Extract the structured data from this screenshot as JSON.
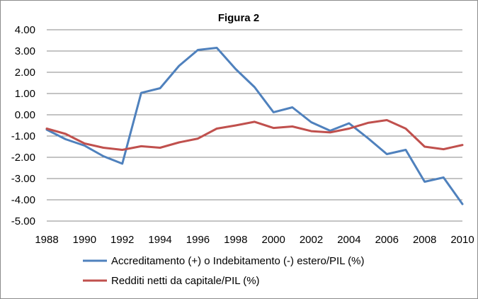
{
  "chart_data": {
    "type": "line",
    "title": "Figura 2",
    "xlabel": "",
    "ylabel": "",
    "x": [
      1988,
      1989,
      1990,
      1991,
      1992,
      1993,
      1994,
      1995,
      1996,
      1997,
      1998,
      1999,
      2000,
      2001,
      2002,
      2003,
      2004,
      2005,
      2006,
      2007,
      2008,
      2009,
      2010
    ],
    "x_ticks": [
      "1988",
      "1990",
      "1992",
      "1994",
      "1996",
      "1998",
      "2000",
      "2002",
      "2004",
      "2006",
      "2008",
      "2010"
    ],
    "y_ticks": [
      "4.00",
      "3.00",
      "2.00",
      "1.00",
      "0.00",
      "-1.00",
      "-2.00",
      "-3.00",
      "-4.00",
      "-5.00"
    ],
    "ylim": [
      -5,
      4
    ],
    "grid": true,
    "legend_position": "bottom",
    "series": [
      {
        "name": "Accreditamento (+) o Indebitamento (-) estero/PIL (%)",
        "color": "#4f81bd",
        "values": [
          -0.7,
          -1.15,
          -1.45,
          -1.95,
          -2.3,
          1.03,
          1.25,
          2.3,
          3.05,
          3.15,
          2.15,
          1.3,
          0.12,
          0.35,
          -0.35,
          -0.75,
          -0.4,
          -1.1,
          -1.85,
          -1.65,
          -3.15,
          -2.95,
          -4.2
        ]
      },
      {
        "name": "Redditi netti da capitale/PIL (%)",
        "color": "#c0504d",
        "values": [
          -0.65,
          -0.9,
          -1.35,
          -1.55,
          -1.65,
          -1.48,
          -1.55,
          -1.3,
          -1.12,
          -0.65,
          -0.5,
          -0.33,
          -0.62,
          -0.55,
          -0.77,
          -0.83,
          -0.65,
          -0.38,
          -0.25,
          -0.65,
          -1.5,
          -1.62,
          -1.42
        ]
      }
    ]
  }
}
